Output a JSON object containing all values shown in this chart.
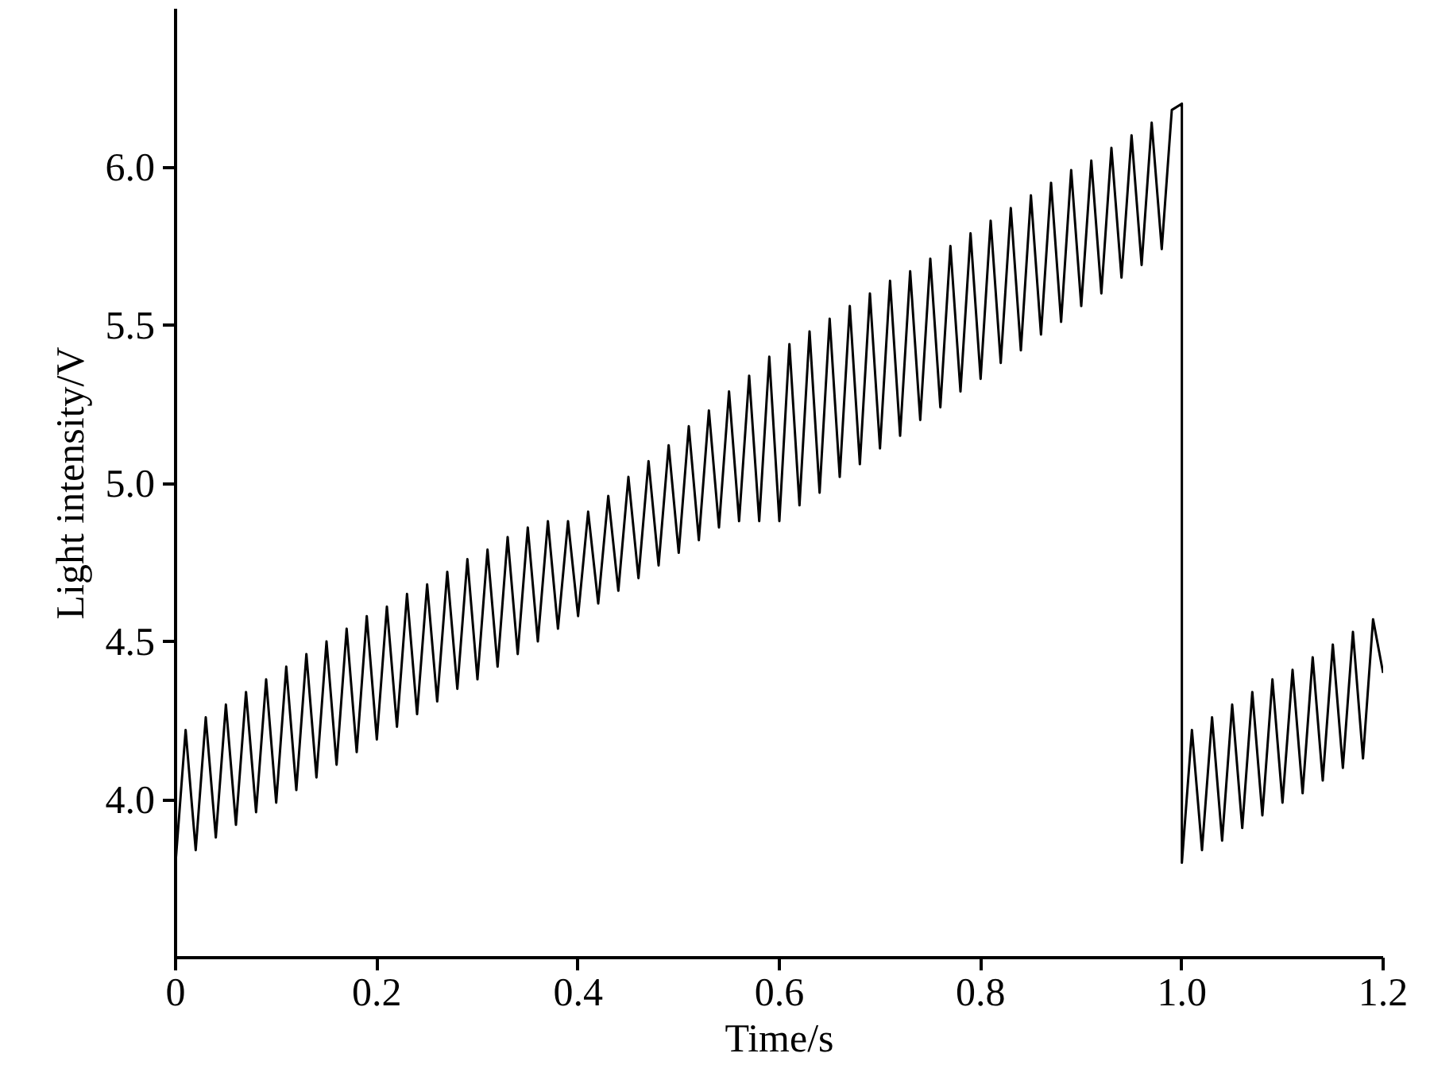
{
  "chart_data": {
    "type": "line",
    "xlabel": "Time/s",
    "ylabel": "Light intensity/V",
    "xlim": [
      0,
      1.2
    ],
    "ylim": [
      3.5,
      6.5
    ],
    "xticks": [
      {
        "value": 0,
        "label": "0"
      },
      0.2,
      0.4,
      0.6,
      0.8,
      {
        "value": 1.0,
        "label": "1.0"
      },
      1.2
    ],
    "yticks": [
      {
        "value": 4.0,
        "label": "4.0"
      },
      4.5,
      {
        "value": 5.0,
        "label": "5.0"
      },
      5.5,
      {
        "value": 6.0,
        "label": "6.0"
      }
    ],
    "grid": false,
    "marker": "none",
    "line_style": "solid",
    "series": [
      {
        "color": "#000000",
        "x": [
          0,
          0.01,
          0.02,
          0.03,
          0.04,
          0.05,
          0.06,
          0.07,
          0.08,
          0.09,
          0.1,
          0.11,
          0.12,
          0.13,
          0.14,
          0.15,
          0.16,
          0.17,
          0.18,
          0.19,
          0.2,
          0.21,
          0.22,
          0.23,
          0.24,
          0.25,
          0.26,
          0.27,
          0.28,
          0.29,
          0.3,
          0.31,
          0.32,
          0.33,
          0.34,
          0.35,
          0.36,
          0.37,
          0.38,
          0.39,
          0.4,
          0.41,
          0.42,
          0.43,
          0.44,
          0.45,
          0.46,
          0.47,
          0.48,
          0.49,
          0.5,
          0.51,
          0.52,
          0.53,
          0.54,
          0.55,
          0.56,
          0.57,
          0.58,
          0.59,
          0.6,
          0.61,
          0.62,
          0.63,
          0.64,
          0.65,
          0.66,
          0.67,
          0.68,
          0.69,
          0.7,
          0.71,
          0.72,
          0.73,
          0.74,
          0.75,
          0.76,
          0.77,
          0.78,
          0.79,
          0.8,
          0.81,
          0.82,
          0.83,
          0.84,
          0.85,
          0.86,
          0.87,
          0.88,
          0.89,
          0.9,
          0.91,
          0.92,
          0.93,
          0.94,
          0.95,
          0.96,
          0.97,
          0.98,
          0.99,
          1.0,
          1.0,
          1.01,
          1.02,
          1.03,
          1.04,
          1.05,
          1.06,
          1.07,
          1.08,
          1.09,
          1.1,
          1.11,
          1.12,
          1.13,
          1.14,
          1.15,
          1.16,
          1.17,
          1.18,
          1.19,
          1.2
        ],
        "values": [
          3.8,
          4.22,
          3.84,
          4.26,
          3.88,
          4.3,
          3.92,
          4.34,
          3.96,
          4.38,
          3.99,
          4.42,
          4.03,
          4.46,
          4.07,
          4.5,
          4.11,
          4.54,
          4.15,
          4.58,
          4.19,
          4.61,
          4.23,
          4.65,
          4.27,
          4.68,
          4.31,
          4.72,
          4.35,
          4.76,
          4.38,
          4.79,
          4.42,
          4.83,
          4.46,
          4.86,
          4.5,
          4.88,
          4.54,
          4.88,
          4.58,
          4.91,
          4.62,
          4.96,
          4.66,
          5.02,
          4.7,
          5.07,
          4.74,
          5.12,
          4.78,
          5.18,
          4.82,
          5.23,
          4.86,
          5.29,
          4.88,
          5.34,
          4.88,
          5.4,
          4.88,
          5.44,
          4.93,
          5.48,
          4.97,
          5.52,
          5.02,
          5.56,
          5.06,
          5.6,
          5.11,
          5.64,
          5.15,
          5.67,
          5.2,
          5.71,
          5.24,
          5.75,
          5.29,
          5.79,
          5.33,
          5.83,
          5.38,
          5.87,
          5.42,
          5.91,
          5.47,
          5.95,
          5.51,
          5.99,
          5.56,
          6.02,
          5.6,
          6.06,
          5.65,
          6.1,
          5.69,
          6.14,
          5.74,
          6.18,
          6.2,
          3.8,
          4.22,
          3.84,
          4.26,
          3.87,
          4.3,
          3.91,
          4.34,
          3.95,
          4.38,
          3.99,
          4.41,
          4.02,
          4.45,
          4.06,
          4.49,
          4.1,
          4.53,
          4.13,
          4.57,
          4.4
        ]
      }
    ]
  }
}
